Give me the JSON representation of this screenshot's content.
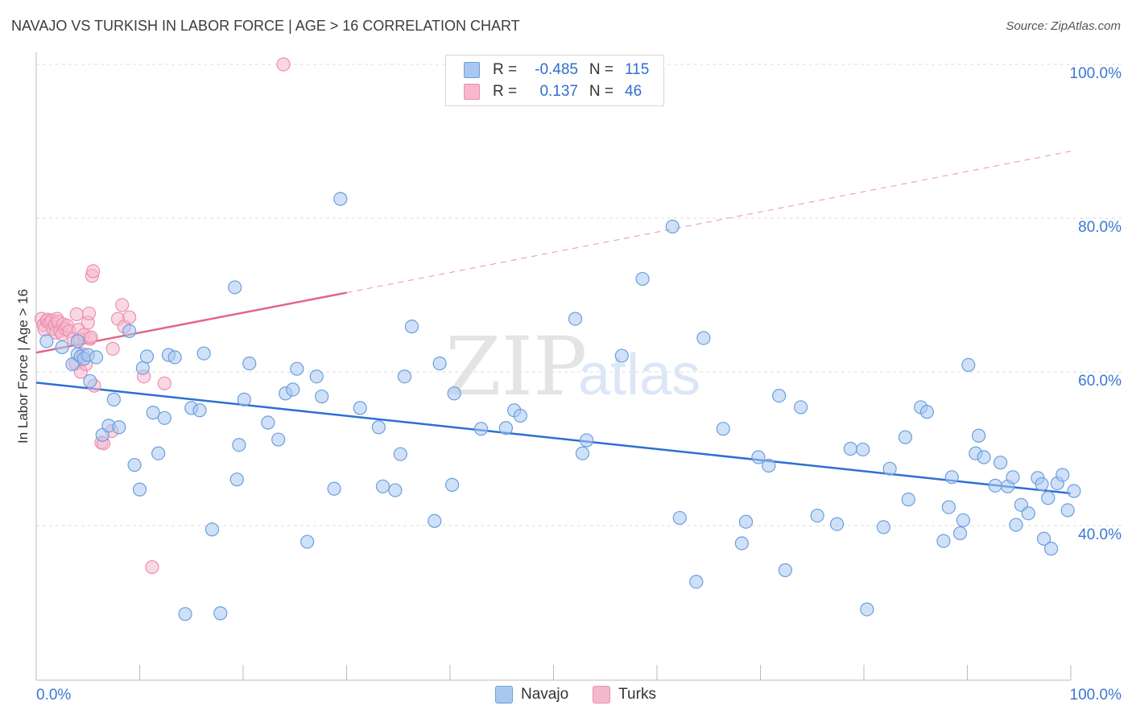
{
  "header": {
    "title": "NAVAJO VS TURKISH IN LABOR FORCE | AGE > 16 CORRELATION CHART",
    "source": "Source: ZipAtlas.com"
  },
  "legend": {
    "rows": [
      {
        "label": "R =",
        "r": "-0.485",
        "n_label": "N =",
        "n": "115"
      },
      {
        "label": "R =",
        "r": "0.137",
        "n_label": "N =",
        "n": "46"
      }
    ]
  },
  "bottom_legend": {
    "navajo": "Navajo",
    "turks": "Turks"
  },
  "watermark": {
    "zip": "ZIP",
    "atlas": "atlas"
  },
  "colors": {
    "navajo_fill": "#a9c8f0",
    "navajo_stroke": "#6a9fe0",
    "navajo_line": "#2e6fd4",
    "turks_fill": "#f6b8cc",
    "turks_stroke": "#ec8fae",
    "turks_line": "#e2668f",
    "tick_label": "#3a78d4"
  },
  "chart_data": {
    "type": "scatter",
    "title": "NAVAJO VS TURKISH IN LABOR FORCE | AGE > 16 CORRELATION CHART",
    "xlabel": "",
    "ylabel": "In Labor Force | Age > 16",
    "xlim": [
      0,
      100
    ],
    "ylim": [
      18,
      104
    ],
    "x_tick_labels": [
      "0.0%",
      "100.0%"
    ],
    "y_ticks": [
      40,
      60,
      80,
      100
    ],
    "y_tick_labels": [
      "40.0%",
      "60.0%",
      "80.0%",
      "100.0%"
    ],
    "grid": true,
    "legend_position": "top-center",
    "series": [
      {
        "name": "Navajo",
        "r": -0.485,
        "n": 115,
        "trend": {
          "x": [
            0,
            100
          ],
          "y": [
            58.6,
            44.2
          ],
          "style": "solid"
        },
        "points": [
          [
            1,
            64
          ],
          [
            2.5,
            63.2
          ],
          [
            3.5,
            61
          ],
          [
            4,
            64
          ],
          [
            4,
            62.3
          ],
          [
            4.3,
            62
          ],
          [
            4.6,
            61.7
          ],
          [
            5,
            62.2
          ],
          [
            5.2,
            58.8
          ],
          [
            5.8,
            61.9
          ],
          [
            6.4,
            51.8
          ],
          [
            7,
            53
          ],
          [
            7.5,
            56.4
          ],
          [
            8,
            52.8
          ],
          [
            9,
            65.3
          ],
          [
            9.5,
            47.9
          ],
          [
            10,
            44.7
          ],
          [
            10.3,
            60.5
          ],
          [
            10.7,
            62
          ],
          [
            11.3,
            54.7
          ],
          [
            11.8,
            49.4
          ],
          [
            12.4,
            54
          ],
          [
            12.8,
            62.2
          ],
          [
            13.4,
            61.9
          ],
          [
            14.4,
            28.5
          ],
          [
            15,
            55.3
          ],
          [
            15.8,
            55
          ],
          [
            16.2,
            62.4
          ],
          [
            17,
            39.5
          ],
          [
            17.8,
            28.6
          ],
          [
            19.2,
            71
          ],
          [
            19.4,
            46
          ],
          [
            19.6,
            50.5
          ],
          [
            20.1,
            56.4
          ],
          [
            20.6,
            61.1
          ],
          [
            22.4,
            53.4
          ],
          [
            23.4,
            51.2
          ],
          [
            24.1,
            57.2
          ],
          [
            24.8,
            57.7
          ],
          [
            25.2,
            60.4
          ],
          [
            26.2,
            37.9
          ],
          [
            27.1,
            59.4
          ],
          [
            27.6,
            56.8
          ],
          [
            28.8,
            44.8
          ],
          [
            29.4,
            82.5
          ],
          [
            31.3,
            55.3
          ],
          [
            33.1,
            52.8
          ],
          [
            33.5,
            45.1
          ],
          [
            34.7,
            44.6
          ],
          [
            35.2,
            49.3
          ],
          [
            35.6,
            59.4
          ],
          [
            36.3,
            65.9
          ],
          [
            38.5,
            40.6
          ],
          [
            39,
            61.1
          ],
          [
            40.2,
            45.3
          ],
          [
            40.4,
            57.2
          ],
          [
            43,
            52.6
          ],
          [
            45.4,
            52.7
          ],
          [
            46.2,
            55
          ],
          [
            46.8,
            54.3
          ],
          [
            52.1,
            66.9
          ],
          [
            52.8,
            49.4
          ],
          [
            53.2,
            51.1
          ],
          [
            56.6,
            62.1
          ],
          [
            58.6,
            72.1
          ],
          [
            61.5,
            78.9
          ],
          [
            62.2,
            41
          ],
          [
            63.8,
            32.7
          ],
          [
            64.5,
            64.4
          ],
          [
            66.4,
            52.6
          ],
          [
            68.2,
            37.7
          ],
          [
            68.6,
            40.5
          ],
          [
            69.8,
            48.9
          ],
          [
            70.8,
            47.8
          ],
          [
            71.8,
            56.9
          ],
          [
            72.4,
            34.2
          ],
          [
            73.9,
            55.4
          ],
          [
            75.5,
            41.3
          ],
          [
            77.4,
            40.2
          ],
          [
            78.7,
            50
          ],
          [
            79.9,
            49.9
          ],
          [
            80.3,
            29.1
          ],
          [
            81.9,
            39.8
          ],
          [
            82.5,
            47.4
          ],
          [
            84,
            51.5
          ],
          [
            84.3,
            43.4
          ],
          [
            85.5,
            55.4
          ],
          [
            86.1,
            54.8
          ],
          [
            87.7,
            38
          ],
          [
            88.2,
            42.4
          ],
          [
            88.5,
            46.3
          ],
          [
            89.3,
            39
          ],
          [
            89.6,
            40.7
          ],
          [
            90.1,
            60.9
          ],
          [
            90.8,
            49.4
          ],
          [
            91.1,
            51.7
          ],
          [
            91.6,
            48.9
          ],
          [
            92.7,
            45.2
          ],
          [
            93.2,
            48.2
          ],
          [
            93.9,
            45.1
          ],
          [
            94.4,
            46.3
          ],
          [
            94.7,
            40.1
          ],
          [
            95.2,
            42.7
          ],
          [
            95.9,
            41.6
          ],
          [
            96.8,
            46.2
          ],
          [
            97.2,
            45.4
          ],
          [
            97.4,
            38.3
          ],
          [
            97.8,
            43.6
          ],
          [
            98.1,
            37
          ],
          [
            98.7,
            45.5
          ],
          [
            99.2,
            46.6
          ],
          [
            99.7,
            42
          ],
          [
            100.3,
            44.5
          ]
        ]
      },
      {
        "name": "Turks",
        "r": 0.137,
        "n": 46,
        "trend": {
          "x": [
            0,
            30,
            100
          ],
          "y": [
            62.5,
            70.3,
            88.7
          ],
          "style": "solid-then-dashed"
        },
        "points": [
          [
            0.5,
            66.9
          ],
          [
            0.7,
            66.1
          ],
          [
            0.8,
            65.5
          ],
          [
            1,
            66.6
          ],
          [
            1.1,
            66.8
          ],
          [
            1.3,
            66.4
          ],
          [
            1.5,
            66.7
          ],
          [
            1.6,
            65.6
          ],
          [
            1.8,
            66.2
          ],
          [
            1.9,
            65.1
          ],
          [
            2,
            66.9
          ],
          [
            2.1,
            66.5
          ],
          [
            2.3,
            65.3
          ],
          [
            2.5,
            64.9
          ],
          [
            2.6,
            66.2
          ],
          [
            2.8,
            65.6
          ],
          [
            3,
            66
          ],
          [
            3.2,
            65.3
          ],
          [
            3.6,
            64.3
          ],
          [
            3.8,
            61.1
          ],
          [
            3.9,
            67.5
          ],
          [
            4.1,
            65.5
          ],
          [
            4.2,
            64.2
          ],
          [
            4.3,
            60
          ],
          [
            4.5,
            62.3
          ],
          [
            4.6,
            64.8
          ],
          [
            4.8,
            61
          ],
          [
            5,
            66.4
          ],
          [
            5.1,
            67.6
          ],
          [
            5.2,
            64.3
          ],
          [
            5.3,
            64.5
          ],
          [
            5.4,
            72.5
          ],
          [
            5.5,
            73.1
          ],
          [
            5.6,
            58.2
          ],
          [
            6.3,
            50.8
          ],
          [
            6.5,
            50.7
          ],
          [
            7.3,
            52.3
          ],
          [
            7.4,
            63
          ],
          [
            7.9,
            66.9
          ],
          [
            8.3,
            68.7
          ],
          [
            8.5,
            65.9
          ],
          [
            9,
            67.1
          ],
          [
            10.4,
            59.4
          ],
          [
            11.2,
            34.6
          ],
          [
            12.4,
            58.5
          ],
          [
            23.9,
            100
          ]
        ]
      }
    ]
  }
}
